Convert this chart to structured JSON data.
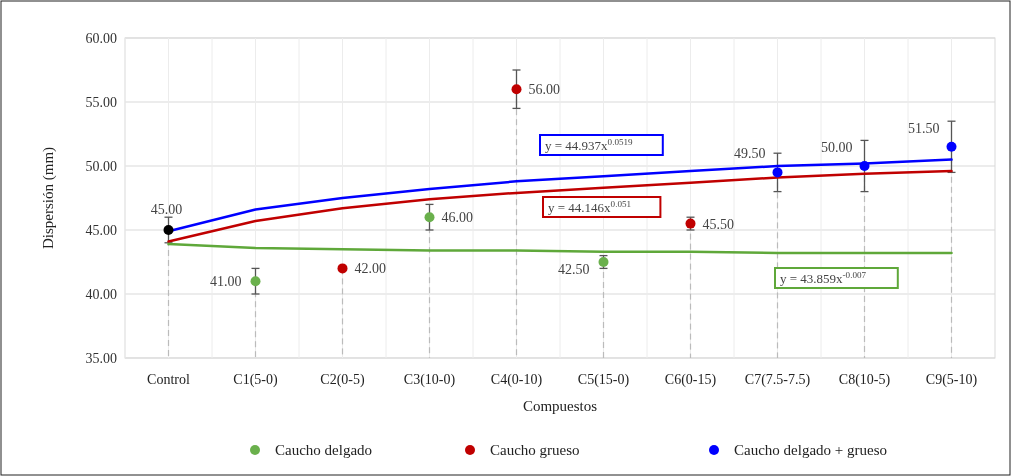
{
  "chart_data": {
    "type": "scatter",
    "xlabel": "Compuestos",
    "ylabel": "Dispersión (mm)",
    "categories": [
      "Control",
      "C1(5-0)",
      "C2(0-5)",
      "C3(10-0)",
      "C4(0-10)",
      "C5(15-0)",
      "C6(0-15)",
      "C7(7.5-7.5)",
      "C8(10-5)",
      "C9(5-10)"
    ],
    "ylim": [
      35,
      60
    ],
    "yticks": [
      {
        "value": 35,
        "label": "35.00"
      },
      {
        "value": 40,
        "label": "40.00"
      },
      {
        "value": 45,
        "label": "45.00"
      },
      {
        "value": 50,
        "label": "50.00"
      },
      {
        "value": 55,
        "label": "55.00"
      },
      {
        "value": 60,
        "label": "60.00"
      }
    ],
    "grid": true,
    "legend": "bottom",
    "series": [
      {
        "type": "line",
        "marker": "none",
        "color": "#0000ff",
        "values": [
          44.9,
          46.6,
          47.5,
          48.2,
          48.8,
          49.2,
          49.6,
          50.0,
          50.2,
          50.5
        ]
      },
      {
        "type": "line",
        "marker": "none",
        "color": "#c00000",
        "values": [
          44.1,
          45.7,
          46.7,
          47.4,
          47.9,
          48.3,
          48.7,
          49.1,
          49.4,
          49.6
        ]
      },
      {
        "type": "line",
        "marker": "none",
        "color": "#5fa83a",
        "values": [
          43.9,
          43.6,
          43.5,
          43.4,
          43.4,
          43.3,
          43.3,
          43.2,
          43.2,
          43.2
        ]
      },
      {
        "type": "scatter",
        "marker": "circle",
        "color": "#000000",
        "values": [
          45,
          null,
          null,
          null,
          null,
          null,
          null,
          null,
          null,
          null
        ],
        "errors": [
          1,
          null,
          null,
          null,
          null,
          null,
          null,
          null,
          null,
          null
        ],
        "value_labels": [
          "45.00",
          null,
          null,
          null,
          null,
          null,
          null,
          null,
          null,
          null
        ]
      },
      {
        "name": "Caucho delgado",
        "marker": "circle",
        "color": "#6ab04c",
        "values": [
          null,
          41,
          null,
          46,
          null,
          42.5,
          null,
          null,
          null,
          null
        ],
        "errors": [
          null,
          1,
          null,
          1,
          null,
          0.5,
          null,
          null,
          null,
          null
        ],
        "value_labels": [
          null,
          "41.00",
          null,
          "46.00",
          null,
          "42.50",
          null,
          null,
          null,
          null
        ]
      },
      {
        "name": "Caucho grueso",
        "marker": "circle",
        "color": "#c00000",
        "values": [
          null,
          null,
          42,
          null,
          56,
          null,
          45.5,
          null,
          null,
          null
        ],
        "errors": [
          null,
          null,
          null,
          null,
          1.5,
          null,
          0.5,
          null,
          null,
          null
        ],
        "value_labels": [
          null,
          null,
          "42.00",
          null,
          "56.00",
          null,
          "45.50",
          null,
          null,
          null
        ]
      },
      {
        "name": "Caucho delgado + grueso",
        "marker": "circle",
        "color": "#0000ff",
        "values": [
          null,
          null,
          null,
          null,
          null,
          null,
          null,
          49.5,
          50,
          51.5
        ],
        "errors": [
          null,
          null,
          null,
          null,
          null,
          null,
          null,
          1.5,
          2,
          2
        ],
        "value_labels": [
          null,
          null,
          null,
          null,
          null,
          null,
          null,
          "49.50",
          "50.00",
          "51.50"
        ]
      }
    ],
    "annotations": [
      "y = 44.937x$^{0.0519}$",
      "y = 44.146x$^{0.051}$",
      "y = 43.859x$^{-0.007}$"
    ]
  }
}
